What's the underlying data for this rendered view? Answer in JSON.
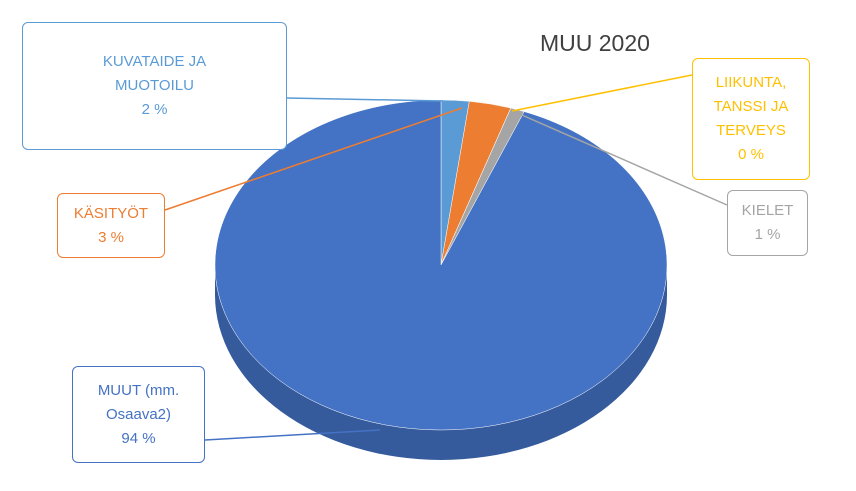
{
  "chart_data": {
    "type": "pie",
    "title": "MUU 2020",
    "categories": [
      "KUVATAIDE JA MUOTOILU",
      "KÄSITYÖT",
      "LIIKUNTA, TANSSI JA TERVEYS",
      "KIELET",
      "MUUT (mm. Osaava2)"
    ],
    "values": [
      2,
      3,
      0,
      1,
      94
    ],
    "value_labels": [
      "2 %",
      "3 %",
      "0 %",
      "1 %",
      "94 %"
    ],
    "colors": [
      "#5b9bd5",
      "#ed7d31",
      "#ffc000",
      "#a5a5a5",
      "#4472c4"
    ]
  }
}
